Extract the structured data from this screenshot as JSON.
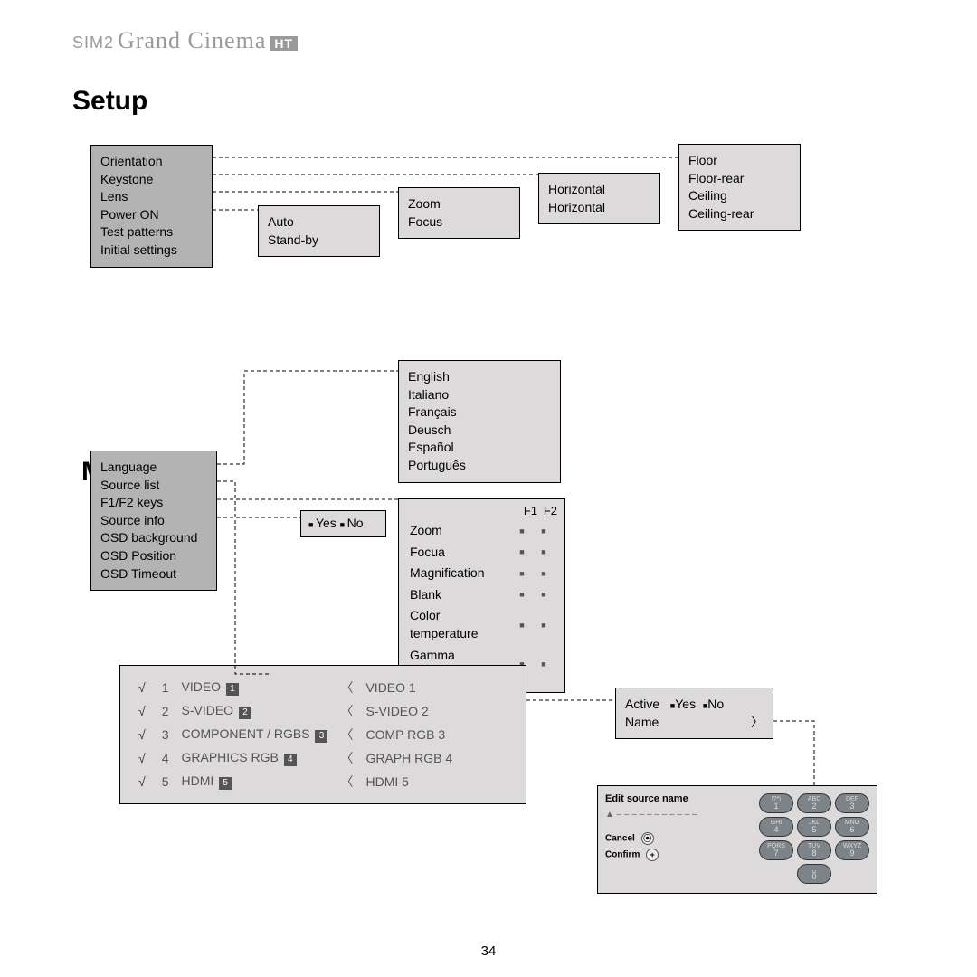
{
  "brand": {
    "pre": "SIM2",
    "script": "Grand Cinema",
    "badge": "HT"
  },
  "page_number": "34",
  "colors": {
    "dark_fill": "#b3b3b3",
    "light_fill": "#dcdada",
    "border": "#000000",
    "text": "#000000",
    "muted": "#555555",
    "brand_gray": "#9a9a9a"
  },
  "sections": {
    "setup": "Setup",
    "menu": "Menu"
  },
  "boxes": {
    "setup_root": [
      "Orientation",
      "Keystone",
      "Lens",
      "Power ON",
      "Test patterns",
      "Initial settings"
    ],
    "power": [
      "Auto",
      "Stand-by"
    ],
    "lens": [
      "Zoom",
      "Focus"
    ],
    "keystone": [
      "Horizontal",
      "Horizontal"
    ],
    "orientation": [
      "Floor",
      "Floor-rear",
      "Ceiling",
      "Ceiling-rear"
    ],
    "menu_root": [
      "Language",
      "Source list",
      "F1/F2 keys",
      "Source info",
      "OSD background",
      "OSD Position",
      "OSD Timeout"
    ],
    "yesno": {
      "yes": "Yes",
      "no": "No"
    },
    "languages": [
      "English",
      "Italiano",
      "Français",
      "Deusch",
      "Español",
      "Português"
    ],
    "f1f2": {
      "head1": "F1",
      "head2": "F2",
      "rows": [
        {
          "label": "Zoom",
          "f1": "■",
          "f2": "■"
        },
        {
          "label": "Focua",
          "f1": "■",
          "f2": "■"
        },
        {
          "label": "Magnification",
          "f1": "■",
          "f2": "■"
        },
        {
          "label": "Blank",
          "f1": "■",
          "f2": "■"
        },
        {
          "label": "Color temperature",
          "f1": "■",
          "f2": "■"
        },
        {
          "label": "Gamma correction",
          "f1": "■",
          "f2": "■"
        }
      ]
    },
    "sources": [
      {
        "n": "1",
        "name": "VIDEO",
        "badge": "1",
        "alias": "VIDEO 1"
      },
      {
        "n": "2",
        "name": "S-VIDEO",
        "badge": "2",
        "alias": "S-VIDEO 2"
      },
      {
        "n": "3",
        "name": "COMPONENT / RGBS",
        "badge": "3",
        "alias": "COMP RGB 3"
      },
      {
        "n": "4",
        "name": "GRAPHICS RGB",
        "badge": "4",
        "alias": "GRAPH RGB 4"
      },
      {
        "n": "5",
        "name": "HDMI",
        "badge": "5",
        "alias": "HDMI 5"
      }
    ],
    "active_box": {
      "label_active": "Active",
      "yes": "Yes",
      "no": "No",
      "label_name": "Name"
    },
    "edit_box": {
      "title": "Edit source name",
      "cancel": "Cancel",
      "confirm": "Confirm",
      "keys": [
        {
          "t": "!?*\\",
          "n": "1"
        },
        {
          "t": "ABC",
          "n": "2"
        },
        {
          "t": "DEF",
          "n": "3"
        },
        {
          "t": "GHI",
          "n": "4"
        },
        {
          "t": "JKL",
          "n": "5"
        },
        {
          "t": "MNO",
          "n": "6"
        },
        {
          "t": "PQRS",
          "n": "7"
        },
        {
          "t": "TUV",
          "n": "8"
        },
        {
          "t": "WXYZ",
          "n": "9"
        },
        {
          "t": "",
          "n": ""
        },
        {
          "t": "␣",
          "n": "0"
        },
        {
          "t": "",
          "n": ""
        }
      ]
    }
  }
}
